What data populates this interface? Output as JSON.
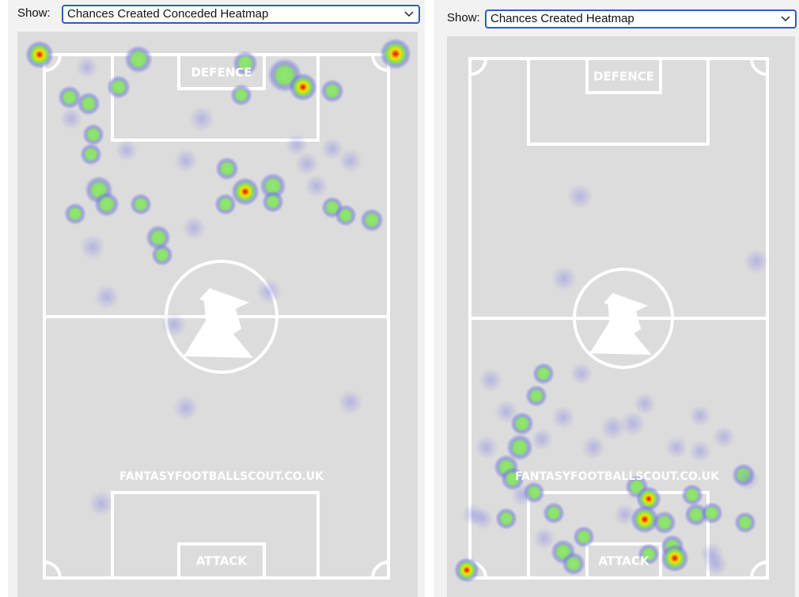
{
  "panels": [
    {
      "show_label": "Show:",
      "selected": "Chances Created Conceded Heatmap",
      "pitch": {
        "top_label": "DEFENCE",
        "bottom_label": "ATTACK",
        "watermark": "FANTASYFOOTBALLSCOUT.CO.UK"
      }
    },
    {
      "show_label": "Show:",
      "selected": "Chances Created Heatmap",
      "pitch": {
        "top_label": "DEFENCE",
        "bottom_label": "ATTACK",
        "watermark": "FANTASYFOOTBALLSCOUT.CO.UK"
      }
    }
  ]
}
